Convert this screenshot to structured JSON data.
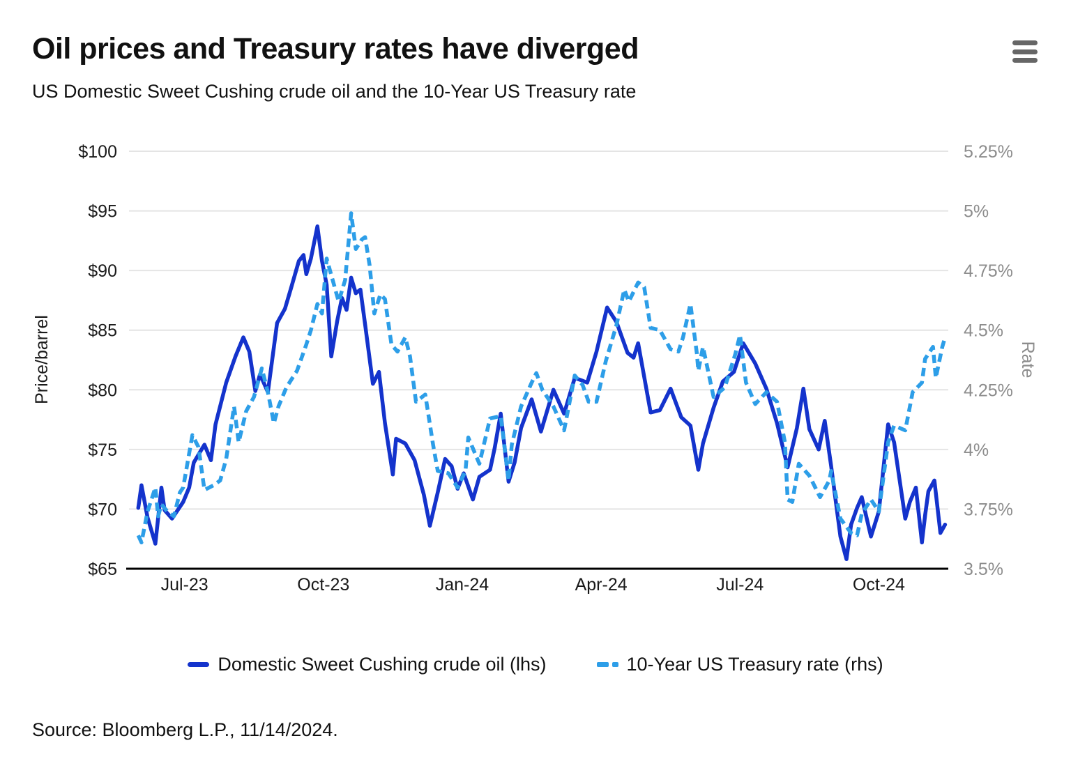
{
  "header": {
    "title": "Oil prices and Treasury rates have diverged",
    "subtitle": "US Domestic Sweet Cushing crude oil and the 10-Year US Treasury rate",
    "menu_icon": "hamburger-menu-icon"
  },
  "source": {
    "text": "Source: Bloomberg L.P., 11/14/2024."
  },
  "colors": {
    "oil_line": "#1433cc",
    "treasury_line": "#2d9ee8",
    "grid": "#e4e4e4",
    "axis": "#000000",
    "label_dark": "#1a1a1a",
    "label_gray": "#8c8c8c",
    "menu_icon": "#666666"
  },
  "chart_data": {
    "type": "line",
    "title": "Oil prices and Treasury rates have diverged",
    "subtitle": "US Domestic Sweet Cushing crude oil and the 10-Year US Treasury rate",
    "grid": true,
    "legend_position": "bottom",
    "x_axis": {
      "unit": "months since Jun 2023 (daily series Jun-2023 to 11/14/2024)",
      "range": [
        -0.2,
        17.5
      ],
      "ticks": [
        {
          "t": 1,
          "label": "Jul-23"
        },
        {
          "t": 4,
          "label": "Oct-23"
        },
        {
          "t": 7,
          "label": "Jan-24"
        },
        {
          "t": 10,
          "label": "Apr-24"
        },
        {
          "t": 13,
          "label": "Jul-24"
        },
        {
          "t": 16,
          "label": "Oct-24"
        }
      ]
    },
    "y_axis_left": {
      "label": "Price/barrel",
      "range": [
        65,
        100
      ],
      "ticks": [
        {
          "value": 100,
          "label": "$100"
        },
        {
          "value": 95,
          "label": "$95"
        },
        {
          "value": 90,
          "label": "$90"
        },
        {
          "value": 85,
          "label": "$85"
        },
        {
          "value": 80,
          "label": "$80"
        },
        {
          "value": 75,
          "label": "$75"
        },
        {
          "value": 70,
          "label": "$70"
        },
        {
          "value": 65,
          "label": "$65"
        }
      ]
    },
    "y_axis_right": {
      "label": "Rate",
      "range": [
        3.5,
        5.25
      ],
      "ticks": [
        {
          "value": 5.25,
          "label": "5.25%"
        },
        {
          "value": 5.0,
          "label": "5%"
        },
        {
          "value": 4.75,
          "label": "4.75%"
        },
        {
          "value": 4.5,
          "label": "4.5%"
        },
        {
          "value": 4.25,
          "label": "4.25%"
        },
        {
          "value": 4.0,
          "label": "4%"
        },
        {
          "value": 3.75,
          "label": "3.75%"
        },
        {
          "value": 3.5,
          "label": "3.5%"
        }
      ]
    },
    "series": [
      {
        "name": "Domestic Sweet Cushing crude oil (lhs)",
        "axis": "left",
        "style": "solid",
        "color": "#1433cc",
        "points": [
          [
            0.0,
            70.1
          ],
          [
            0.07,
            72.0
          ],
          [
            0.2,
            69.3
          ],
          [
            0.37,
            67.1
          ],
          [
            0.5,
            71.8
          ],
          [
            0.57,
            69.9
          ],
          [
            0.73,
            69.2
          ],
          [
            0.97,
            70.6
          ],
          [
            1.1,
            71.8
          ],
          [
            1.2,
            73.9
          ],
          [
            1.43,
            75.4
          ],
          [
            1.57,
            74.1
          ],
          [
            1.67,
            77.1
          ],
          [
            1.9,
            80.6
          ],
          [
            2.1,
            82.8
          ],
          [
            2.27,
            84.4
          ],
          [
            2.4,
            83.2
          ],
          [
            2.53,
            79.9
          ],
          [
            2.63,
            81.3
          ],
          [
            2.8,
            79.8
          ],
          [
            3.0,
            85.6
          ],
          [
            3.17,
            86.8
          ],
          [
            3.3,
            88.5
          ],
          [
            3.47,
            90.8
          ],
          [
            3.57,
            91.3
          ],
          [
            3.63,
            89.7
          ],
          [
            3.73,
            91.0
          ],
          [
            3.87,
            93.7
          ],
          [
            3.97,
            90.8
          ],
          [
            4.07,
            88.8
          ],
          [
            4.17,
            82.8
          ],
          [
            4.3,
            85.8
          ],
          [
            4.4,
            87.7
          ],
          [
            4.5,
            86.7
          ],
          [
            4.6,
            89.4
          ],
          [
            4.7,
            88.1
          ],
          [
            4.8,
            88.4
          ],
          [
            4.9,
            85.5
          ],
          [
            5.07,
            80.5
          ],
          [
            5.2,
            81.5
          ],
          [
            5.33,
            77.2
          ],
          [
            5.5,
            72.9
          ],
          [
            5.57,
            75.9
          ],
          [
            5.77,
            75.5
          ],
          [
            5.97,
            74.1
          ],
          [
            6.17,
            71.2
          ],
          [
            6.3,
            68.6
          ],
          [
            6.47,
            71.4
          ],
          [
            6.63,
            74.2
          ],
          [
            6.77,
            73.6
          ],
          [
            6.9,
            71.7
          ],
          [
            7.03,
            73.0
          ],
          [
            7.23,
            70.8
          ],
          [
            7.37,
            72.7
          ],
          [
            7.6,
            73.3
          ],
          [
            7.7,
            75.1
          ],
          [
            7.83,
            78.0
          ],
          [
            8.0,
            72.3
          ],
          [
            8.13,
            73.9
          ],
          [
            8.27,
            76.8
          ],
          [
            8.5,
            79.2
          ],
          [
            8.7,
            76.5
          ],
          [
            8.97,
            80.0
          ],
          [
            9.2,
            78.0
          ],
          [
            9.43,
            81.0
          ],
          [
            9.57,
            80.8
          ],
          [
            9.7,
            80.6
          ],
          [
            9.9,
            83.2
          ],
          [
            10.13,
            86.9
          ],
          [
            10.33,
            85.7
          ],
          [
            10.57,
            83.1
          ],
          [
            10.7,
            82.7
          ],
          [
            10.8,
            83.9
          ],
          [
            11.07,
            78.1
          ],
          [
            11.27,
            78.3
          ],
          [
            11.5,
            80.1
          ],
          [
            11.73,
            77.7
          ],
          [
            11.93,
            77.0
          ],
          [
            12.1,
            73.3
          ],
          [
            12.2,
            75.5
          ],
          [
            12.43,
            78.5
          ],
          [
            12.63,
            80.7
          ],
          [
            12.87,
            81.5
          ],
          [
            13.07,
            83.9
          ],
          [
            13.33,
            82.2
          ],
          [
            13.57,
            80.1
          ],
          [
            13.8,
            77.2
          ],
          [
            14.03,
            73.5
          ],
          [
            14.23,
            76.8
          ],
          [
            14.37,
            80.1
          ],
          [
            14.5,
            76.7
          ],
          [
            14.7,
            75.0
          ],
          [
            14.83,
            77.4
          ],
          [
            14.97,
            73.6
          ],
          [
            15.17,
            67.7
          ],
          [
            15.3,
            65.8
          ],
          [
            15.4,
            68.7
          ],
          [
            15.53,
            70.1
          ],
          [
            15.63,
            71.0
          ],
          [
            15.83,
            67.7
          ],
          [
            16.0,
            69.8
          ],
          [
            16.2,
            77.1
          ],
          [
            16.33,
            75.6
          ],
          [
            16.57,
            69.2
          ],
          [
            16.67,
            70.6
          ],
          [
            16.8,
            71.8
          ],
          [
            16.93,
            67.2
          ],
          [
            17.0,
            69.5
          ],
          [
            17.07,
            71.5
          ],
          [
            17.2,
            72.4
          ],
          [
            17.33,
            68.0
          ],
          [
            17.43,
            68.7
          ]
        ]
      },
      {
        "name": "10-Year US Treasury rate (rhs)",
        "axis": "right",
        "style": "dashed",
        "color": "#2d9ee8",
        "points": [
          [
            0.0,
            3.64
          ],
          [
            0.07,
            3.61
          ],
          [
            0.2,
            3.74
          ],
          [
            0.37,
            3.84
          ],
          [
            0.43,
            3.72
          ],
          [
            0.5,
            3.77
          ],
          [
            0.63,
            3.74
          ],
          [
            0.77,
            3.72
          ],
          [
            0.9,
            3.82
          ],
          [
            0.97,
            3.84
          ],
          [
            1.17,
            4.06
          ],
          [
            1.3,
            4.01
          ],
          [
            1.43,
            3.83
          ],
          [
            1.63,
            3.85
          ],
          [
            1.77,
            3.87
          ],
          [
            1.9,
            3.96
          ],
          [
            2.07,
            4.18
          ],
          [
            2.17,
            4.03
          ],
          [
            2.33,
            4.16
          ],
          [
            2.5,
            4.22
          ],
          [
            2.67,
            4.34
          ],
          [
            2.8,
            4.24
          ],
          [
            2.93,
            4.11
          ],
          [
            3.03,
            4.18
          ],
          [
            3.2,
            4.26
          ],
          [
            3.43,
            4.33
          ],
          [
            3.63,
            4.44
          ],
          [
            3.73,
            4.5
          ],
          [
            3.87,
            4.61
          ],
          [
            3.97,
            4.57
          ],
          [
            4.07,
            4.8
          ],
          [
            4.2,
            4.71
          ],
          [
            4.33,
            4.62
          ],
          [
            4.47,
            4.71
          ],
          [
            4.6,
            4.99
          ],
          [
            4.7,
            4.84
          ],
          [
            4.83,
            4.88
          ],
          [
            4.9,
            4.89
          ],
          [
            5.0,
            4.77
          ],
          [
            5.1,
            4.57
          ],
          [
            5.23,
            4.65
          ],
          [
            5.33,
            4.63
          ],
          [
            5.47,
            4.44
          ],
          [
            5.6,
            4.41
          ],
          [
            5.77,
            4.47
          ],
          [
            5.87,
            4.39
          ],
          [
            6.0,
            4.2
          ],
          [
            6.2,
            4.23
          ],
          [
            6.37,
            4.02
          ],
          [
            6.47,
            3.91
          ],
          [
            6.7,
            3.9
          ],
          [
            6.9,
            3.84
          ],
          [
            7.07,
            3.91
          ],
          [
            7.13,
            4.05
          ],
          [
            7.37,
            3.94
          ],
          [
            7.6,
            4.13
          ],
          [
            7.83,
            4.14
          ],
          [
            8.0,
            3.87
          ],
          [
            8.07,
            4.02
          ],
          [
            8.27,
            4.18
          ],
          [
            8.5,
            4.28
          ],
          [
            8.6,
            4.32
          ],
          [
            8.73,
            4.25
          ],
          [
            8.97,
            4.18
          ],
          [
            9.2,
            4.08
          ],
          [
            9.43,
            4.31
          ],
          [
            9.6,
            4.27
          ],
          [
            9.73,
            4.2
          ],
          [
            9.9,
            4.2
          ],
          [
            10.1,
            4.37
          ],
          [
            10.33,
            4.52
          ],
          [
            10.5,
            4.67
          ],
          [
            10.6,
            4.62
          ],
          [
            10.8,
            4.7
          ],
          [
            10.93,
            4.68
          ],
          [
            11.07,
            4.51
          ],
          [
            11.27,
            4.5
          ],
          [
            11.5,
            4.42
          ],
          [
            11.67,
            4.41
          ],
          [
            11.77,
            4.47
          ],
          [
            11.93,
            4.61
          ],
          [
            12.07,
            4.4
          ],
          [
            12.1,
            4.33
          ],
          [
            12.2,
            4.43
          ],
          [
            12.43,
            4.22
          ],
          [
            12.67,
            4.26
          ],
          [
            12.9,
            4.4
          ],
          [
            13.0,
            4.48
          ],
          [
            13.13,
            4.28
          ],
          [
            13.33,
            4.19
          ],
          [
            13.57,
            4.24
          ],
          [
            13.8,
            4.2
          ],
          [
            13.97,
            4.03
          ],
          [
            14.03,
            3.79
          ],
          [
            14.13,
            3.78
          ],
          [
            14.27,
            3.94
          ],
          [
            14.5,
            3.89
          ],
          [
            14.73,
            3.8
          ],
          [
            14.93,
            3.87
          ],
          [
            14.97,
            3.91
          ],
          [
            15.17,
            3.71
          ],
          [
            15.4,
            3.65
          ],
          [
            15.53,
            3.64
          ],
          [
            15.63,
            3.73
          ],
          [
            15.83,
            3.79
          ],
          [
            16.0,
            3.74
          ],
          [
            16.2,
            4.03
          ],
          [
            16.33,
            4.1
          ],
          [
            16.57,
            4.08
          ],
          [
            16.73,
            4.24
          ],
          [
            16.93,
            4.28
          ],
          [
            17.0,
            4.38
          ],
          [
            17.17,
            4.43
          ],
          [
            17.23,
            4.3
          ],
          [
            17.37,
            4.43
          ],
          [
            17.43,
            4.47
          ]
        ]
      }
    ]
  },
  "legend": {
    "items": [
      {
        "label": "Domestic Sweet Cushing crude oil (lhs)",
        "swatch": "solid-line-swatch"
      },
      {
        "label": "10-Year US Treasury rate (rhs)",
        "swatch": "dashed-line-swatch"
      }
    ]
  }
}
